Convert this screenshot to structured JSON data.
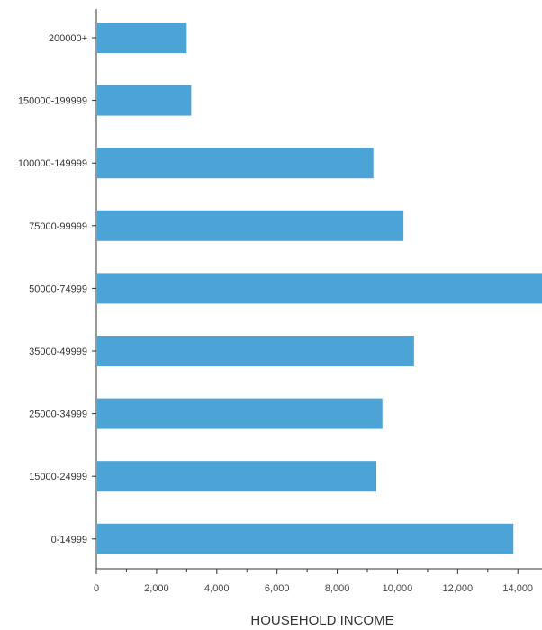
{
  "chart_data": {
    "type": "bar",
    "orientation": "horizontal",
    "title": "",
    "xlabel": "HOUSEHOLD INCOME",
    "ylabel": "",
    "categories": [
      "200000+",
      "150000-199999",
      "100000-149999",
      "75000-99999",
      "50000-74999",
      "35000-49999",
      "25000-34999",
      "15000-24999",
      "0-14999"
    ],
    "values": [
      3000,
      3150,
      9200,
      10200,
      14800,
      10550,
      9500,
      9300,
      13850
    ],
    "xlim": [
      0,
      14800
    ],
    "xticks": [
      "0",
      "2,000",
      "4,000",
      "6,000",
      "8,000",
      "10,000",
      "12,000",
      "14,000"
    ],
    "xtick_values": [
      0,
      2000,
      4000,
      6000,
      8000,
      10000,
      12000,
      14000
    ],
    "grid": false,
    "legend": "none",
    "bar_color": "#4ba3d6",
    "axis_color": "#333333"
  }
}
